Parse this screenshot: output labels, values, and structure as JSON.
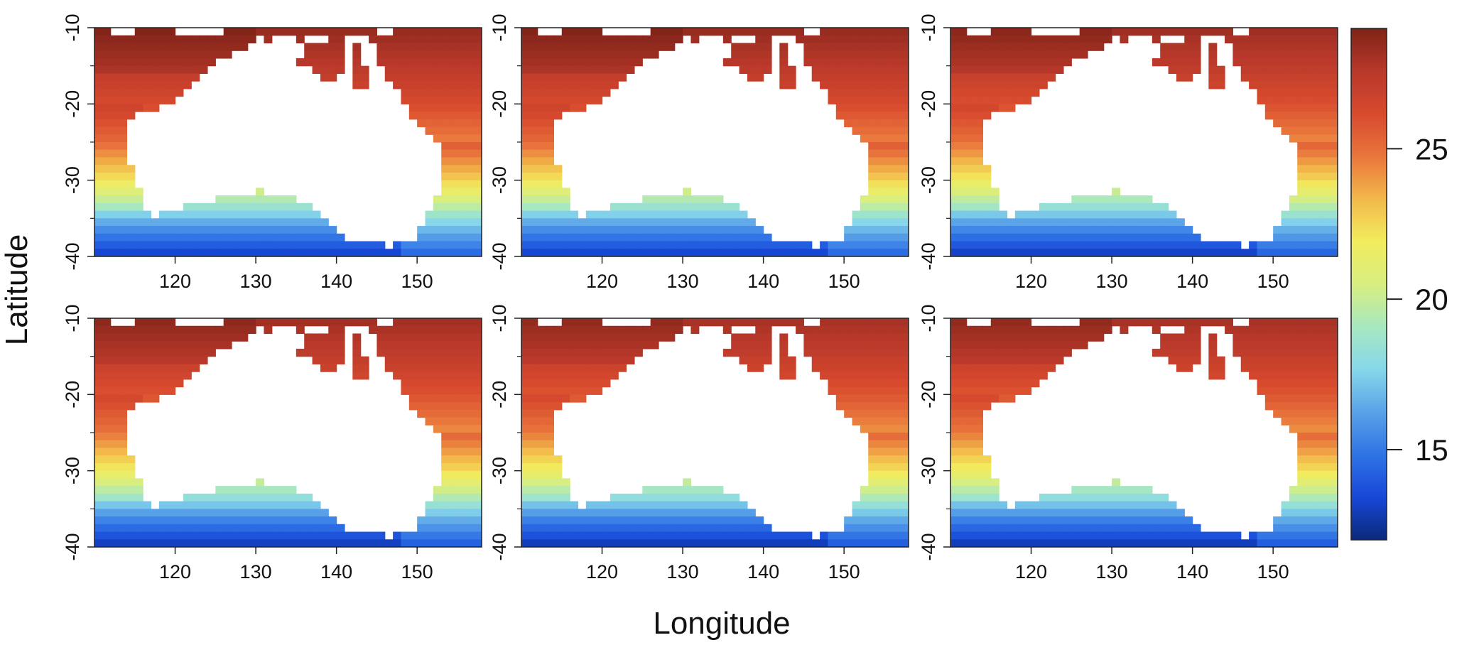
{
  "chart_data": {
    "type": "heatmap",
    "title": "",
    "xlabel": "Longitude",
    "ylabel": "Latitude",
    "grid": false,
    "layout": "2 rows x 3 columns of map panels sharing one colorbar (right)",
    "xlim": [
      110,
      158
    ],
    "ylim": [
      -40,
      -10
    ],
    "x_ticks": [
      120,
      130,
      140,
      150
    ],
    "x_tick_labels": [
      "120",
      "130",
      "140",
      "150"
    ],
    "y_ticks": [
      -10,
      -20,
      -30,
      -40
    ],
    "y_tick_labels": [
      "-10",
      "-20",
      "-30",
      "-40"
    ],
    "cell_size_deg": 1,
    "value_unit": "temperature",
    "colorbar": {
      "range": [
        12,
        29
      ],
      "ticks": [
        15,
        20,
        25
      ],
      "tick_labels": [
        "15",
        "20",
        "25"
      ],
      "colormap": [
        "#0a2a7a",
        "#1747d8",
        "#2f73e6",
        "#5aa2e8",
        "#87d7ea",
        "#a7e8c0",
        "#d8ee80",
        "#f2ec5e",
        "#f2b84a",
        "#e9753c",
        "#d84a2e",
        "#b8382a",
        "#7f2318"
      ],
      "placement": "right"
    },
    "field_description": "Gridded sea temperature around Australia; land cells blank. Values depend on latitude: ~28 at -10 falling to ~13 at -40.",
    "field_profile": {
      "latitude": [
        -10,
        -15,
        -20,
        -25,
        -30,
        -33,
        -36,
        -38,
        -40
      ],
      "temperature": [
        28.5,
        27.5,
        26.2,
        24.5,
        21.5,
        19.0,
        16.0,
        14.5,
        13.0
      ]
    },
    "panels": [
      {
        "name": "panel-1",
        "row": 1,
        "col": 1,
        "show_y_axis": true,
        "offset": 0.0
      },
      {
        "name": "panel-2",
        "row": 1,
        "col": 2,
        "show_y_axis": true,
        "offset": 0.0
      },
      {
        "name": "panel-3",
        "row": 1,
        "col": 3,
        "show_y_axis": true,
        "offset": -0.2
      },
      {
        "name": "panel-4",
        "row": 2,
        "col": 1,
        "show_y_axis": true,
        "offset": -0.3
      },
      {
        "name": "panel-5",
        "row": 2,
        "col": 2,
        "show_y_axis": true,
        "offset": -0.4
      },
      {
        "name": "panel-6",
        "row": 2,
        "col": 3,
        "show_y_axis": true,
        "offset": -0.4
      }
    ],
    "land_mask_rows": [
      {
        "lat": -10.5,
        "spans": [
          [
            112,
            115
          ],
          [
            120,
            126
          ],
          [
            145,
            147
          ]
        ]
      },
      {
        "lat": -11.5,
        "spans": [
          [
            130,
            131
          ],
          [
            132,
            135
          ],
          [
            136,
            139
          ],
          [
            141.5,
            143
          ],
          [
            143,
            144
          ]
        ]
      },
      {
        "lat": -12.5,
        "spans": [
          [
            129,
            136
          ],
          [
            141,
            142.3
          ],
          [
            143,
            145
          ]
        ]
      },
      {
        "lat": -13.5,
        "spans": [
          [
            127,
            136
          ],
          [
            141,
            142.3
          ],
          [
            143.2,
            145
          ]
        ]
      },
      {
        "lat": -14.5,
        "spans": [
          [
            125,
            135
          ],
          [
            141,
            142.3
          ],
          [
            143.5,
            145.5
          ]
        ]
      },
      {
        "lat": -15.5,
        "spans": [
          [
            124,
            137
          ],
          [
            141,
            142.3
          ],
          [
            144,
            146
          ]
        ]
      },
      {
        "lat": -16.5,
        "spans": [
          [
            123,
            138
          ],
          [
            140,
            142.3
          ],
          [
            144,
            146.5
          ]
        ]
      },
      {
        "lat": -17.5,
        "spans": [
          [
            122,
            142.3
          ],
          [
            144.5,
            147
          ]
        ]
      },
      {
        "lat": -18.5,
        "spans": [
          [
            121,
            148
          ]
        ]
      },
      {
        "lat": -19.5,
        "spans": [
          [
            120,
            148.5
          ]
        ]
      },
      {
        "lat": -20.5,
        "spans": [
          [
            118,
            149
          ]
        ]
      },
      {
        "lat": -21.5,
        "spans": [
          [
            115,
            149.5
          ]
        ]
      },
      {
        "lat": -22.5,
        "spans": [
          [
            114,
            150
          ]
        ]
      },
      {
        "lat": -23.5,
        "spans": [
          [
            114,
            151
          ]
        ]
      },
      {
        "lat": -24.5,
        "spans": [
          [
            114,
            152
          ]
        ]
      },
      {
        "lat": -25.5,
        "spans": [
          [
            114,
            153
          ]
        ]
      },
      {
        "lat": -26.5,
        "spans": [
          [
            114,
            153
          ]
        ]
      },
      {
        "lat": -27.5,
        "spans": [
          [
            114,
            153
          ]
        ]
      },
      {
        "lat": -28.5,
        "spans": [
          [
            115,
            153
          ]
        ]
      },
      {
        "lat": -29.5,
        "spans": [
          [
            115,
            153
          ]
        ]
      },
      {
        "lat": -30.5,
        "spans": [
          [
            115,
            153
          ]
        ]
      },
      {
        "lat": -31.5,
        "spans": [
          [
            116,
            130
          ],
          [
            131,
            153
          ]
        ]
      },
      {
        "lat": -32.5,
        "spans": [
          [
            116,
            125
          ],
          [
            135,
            152
          ]
        ]
      },
      {
        "lat": -33.5,
        "spans": [
          [
            116,
            121
          ],
          [
            137,
            152
          ]
        ]
      },
      {
        "lat": -34.5,
        "spans": [
          [
            117,
            118
          ],
          [
            138,
            151
          ]
        ]
      },
      {
        "lat": -35.5,
        "spans": [
          [
            139,
            151
          ]
        ]
      },
      {
        "lat": -36.5,
        "spans": [
          [
            140,
            150
          ]
        ]
      },
      {
        "lat": -37.5,
        "spans": [
          [
            141,
            150
          ]
        ]
      },
      {
        "lat": -38.5,
        "spans": [
          [
            146,
            146.8
          ]
        ]
      }
    ]
  }
}
